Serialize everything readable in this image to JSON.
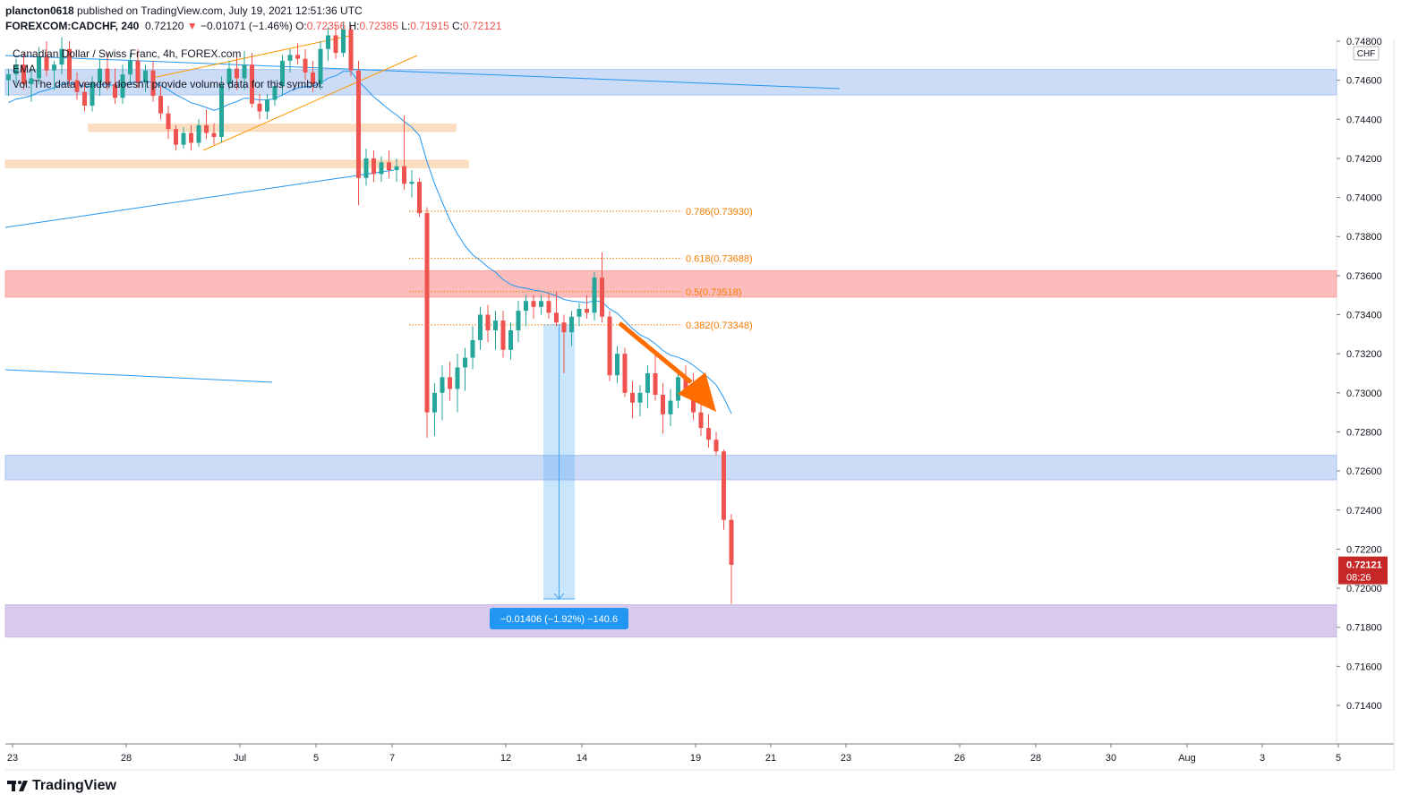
{
  "header": {
    "author": "plancton0618",
    "published_text": "published on TradingView.com, July 19, 2021 12:51:36 UTC",
    "symbol": "FOREXCOM:CADCHF, 240",
    "last": "0.72120",
    "arrow": "▼",
    "change": "−0.01071 (−1.46%)",
    "o_label": "O:",
    "o_value": "0.72356",
    "h_label": "H:",
    "h_value": "0.72385",
    "l_label": "L:",
    "l_value": "0.71915",
    "c_label": "C:",
    "c_value": "0.72121"
  },
  "legend": {
    "title": "Canadian Dollar / Swiss Franc, 4h, FOREX.com",
    "ema": "EMA",
    "vol": "Vol: The data vendor doesn't provide volume data for this symbol."
  },
  "price_axis": {
    "currency_badge": "CHF",
    "ticks": [
      "0.74800",
      "0.74600",
      "0.74400",
      "0.74200",
      "0.74000",
      "0.73800",
      "0.73600",
      "0.73400",
      "0.73200",
      "0.73000",
      "0.72800",
      "0.72600",
      "0.72400",
      "0.72200",
      "0.72000",
      "0.71800",
      "0.71600",
      "0.71400"
    ],
    "last_price_label": "0.72121",
    "countdown": "08:26"
  },
  "time_axis": {
    "ticks": [
      "23",
      "28",
      "Jul",
      "5",
      "7",
      "12",
      "14",
      "19",
      "21",
      "23",
      "26",
      "28",
      "30",
      "Aug",
      "3",
      "5"
    ]
  },
  "fib": [
    {
      "label": "0.786(0.73930)",
      "price": 0.7393
    },
    {
      "label": "0.618(0.73688)",
      "price": 0.73688
    },
    {
      "label": "0.5(0.73518)",
      "price": 0.73518
    },
    {
      "label": "0.382(0.73348)",
      "price": 0.73348
    }
  ],
  "measure": {
    "label": "−0.01406 (−1.92%) −140.6"
  },
  "colors": {
    "up": "#26a69a",
    "down": "#ef5350",
    "ema": "#2196f3",
    "fib": "#f57c00",
    "arrow": "#ff6d00",
    "blue_zone": "#aac4f2",
    "red_zone": "#fca5a5",
    "orange_zone": "#fbd3ad",
    "purple_zone": "#cbb8e6",
    "measure": "#42a5f5",
    "trend_orange": "#ff9800"
  },
  "chart_data": {
    "type": "candlestick",
    "timeframe": "4h",
    "x_ticks": [
      "23",
      "28",
      "Jul",
      "5",
      "7",
      "12",
      "14",
      "19",
      "21",
      "23",
      "26",
      "28",
      "30",
      "Aug",
      "3",
      "5"
    ],
    "ylim": [
      0.7132,
      0.7482
    ],
    "zones": [
      {
        "kind": "support-resistance",
        "color": "blue",
        "from": 0.74525,
        "to": 0.74655
      },
      {
        "kind": "supply",
        "color": "orange",
        "from": 0.74345,
        "to": 0.74375
      },
      {
        "kind": "supply",
        "color": "orange",
        "from": 0.74165,
        "to": 0.7419
      },
      {
        "kind": "resistance",
        "color": "red",
        "from": 0.7349,
        "to": 0.73625
      },
      {
        "kind": "support-resistance",
        "color": "blue",
        "from": 0.72555,
        "to": 0.7268
      },
      {
        "kind": "target",
        "color": "purple",
        "from": 0.7175,
        "to": 0.71915
      }
    ],
    "fibonacci": [
      {
        "level": 0.786,
        "price": 0.7393
      },
      {
        "level": 0.618,
        "price": 0.73688
      },
      {
        "level": 0.5,
        "price": 0.73518
      },
      {
        "level": 0.382,
        "price": 0.73348
      }
    ],
    "measurement": {
      "change": -0.01406,
      "percent": -1.92,
      "pips": -140.6
    },
    "last_price": 0.72121,
    "candles_ohlc": [
      [
        0.746,
        0.7466,
        0.7452,
        0.7463
      ],
      [
        0.7463,
        0.7471,
        0.7458,
        0.7468
      ],
      [
        0.7468,
        0.7474,
        0.7455,
        0.7458
      ],
      [
        0.7458,
        0.7466,
        0.7449,
        0.7461
      ],
      [
        0.7461,
        0.7477,
        0.7458,
        0.7472
      ],
      [
        0.7472,
        0.748,
        0.7462,
        0.7465
      ],
      [
        0.7465,
        0.747,
        0.7455,
        0.7468
      ],
      [
        0.7468,
        0.7482,
        0.7463,
        0.7476
      ],
      [
        0.7476,
        0.748,
        0.7457,
        0.746
      ],
      [
        0.746,
        0.7464,
        0.745,
        0.7454
      ],
      [
        0.7454,
        0.7459,
        0.7444,
        0.7447
      ],
      [
        0.7447,
        0.7462,
        0.7444,
        0.7459
      ],
      [
        0.7459,
        0.7471,
        0.7452,
        0.7466
      ],
      [
        0.7466,
        0.7474,
        0.7455,
        0.7458
      ],
      [
        0.7458,
        0.7466,
        0.7448,
        0.7451
      ],
      [
        0.7451,
        0.7468,
        0.7448,
        0.7463
      ],
      [
        0.7463,
        0.7474,
        0.7458,
        0.747
      ],
      [
        0.747,
        0.7476,
        0.7456,
        0.7459
      ],
      [
        0.7459,
        0.7468,
        0.7454,
        0.7465
      ],
      [
        0.7465,
        0.747,
        0.7449,
        0.7452
      ],
      [
        0.7452,
        0.7457,
        0.744,
        0.7443
      ],
      [
        0.7443,
        0.7447,
        0.743,
        0.7435
      ],
      [
        0.7435,
        0.7437,
        0.7424,
        0.7427
      ],
      [
        0.7427,
        0.7436,
        0.7425,
        0.7433
      ],
      [
        0.7433,
        0.7437,
        0.7424,
        0.7428
      ],
      [
        0.7428,
        0.744,
        0.7426,
        0.7437
      ],
      [
        0.7437,
        0.7445,
        0.743,
        0.7433
      ],
      [
        0.7433,
        0.7438,
        0.7427,
        0.7431
      ],
      [
        0.7431,
        0.7462,
        0.7428,
        0.7458
      ],
      [
        0.7458,
        0.747,
        0.7455,
        0.7466
      ],
      [
        0.7466,
        0.7472,
        0.7455,
        0.7461
      ],
      [
        0.7461,
        0.7475,
        0.7455,
        0.7468
      ],
      [
        0.7468,
        0.7474,
        0.7446,
        0.7448
      ],
      [
        0.7448,
        0.7453,
        0.744,
        0.7444
      ],
      [
        0.7444,
        0.7453,
        0.744,
        0.745
      ],
      [
        0.745,
        0.746,
        0.7447,
        0.7457
      ],
      [
        0.7457,
        0.7473,
        0.7452,
        0.747
      ],
      [
        0.747,
        0.7476,
        0.7464,
        0.7473
      ],
      [
        0.7473,
        0.7479,
        0.7468,
        0.7471
      ],
      [
        0.7471,
        0.7476,
        0.746,
        0.7464
      ],
      [
        0.7464,
        0.747,
        0.7454,
        0.7458
      ],
      [
        0.7458,
        0.748,
        0.7455,
        0.7476
      ],
      [
        0.7476,
        0.7487,
        0.747,
        0.7483
      ],
      [
        0.7483,
        0.7488,
        0.7471,
        0.7474
      ],
      [
        0.7474,
        0.749,
        0.7472,
        0.7486
      ],
      [
        0.7486,
        0.7488,
        0.7462,
        0.7465
      ],
      [
        0.7465,
        0.747,
        0.7396,
        0.741
      ],
      [
        0.741,
        0.7425,
        0.7406,
        0.742
      ],
      [
        0.742,
        0.7424,
        0.7408,
        0.7412
      ],
      [
        0.7412,
        0.7421,
        0.7408,
        0.7418
      ],
      [
        0.7418,
        0.7424,
        0.741,
        0.7414
      ],
      [
        0.7414,
        0.742,
        0.7408,
        0.7416
      ],
      [
        0.7416,
        0.7442,
        0.7404,
        0.7407
      ],
      [
        0.7407,
        0.7414,
        0.74,
        0.7408
      ],
      [
        0.7408,
        0.741,
        0.739,
        0.7392
      ],
      [
        0.7392,
        0.7395,
        0.7277,
        0.729
      ],
      [
        0.729,
        0.7305,
        0.7278,
        0.73
      ],
      [
        0.73,
        0.7314,
        0.7286,
        0.7308
      ],
      [
        0.7308,
        0.7316,
        0.7296,
        0.7302
      ],
      [
        0.7302,
        0.732,
        0.729,
        0.7313
      ],
      [
        0.7313,
        0.7323,
        0.7301,
        0.7318
      ],
      [
        0.7318,
        0.7334,
        0.7312,
        0.7327
      ],
      [
        0.7327,
        0.7344,
        0.7322,
        0.734
      ],
      [
        0.734,
        0.7345,
        0.7326,
        0.7332
      ],
      [
        0.7332,
        0.7342,
        0.7322,
        0.7337
      ],
      [
        0.7337,
        0.7342,
        0.7318,
        0.7322
      ],
      [
        0.7322,
        0.7336,
        0.7317,
        0.7332
      ],
      [
        0.7332,
        0.7347,
        0.7326,
        0.7342
      ],
      [
        0.7342,
        0.735,
        0.7334,
        0.7347
      ],
      [
        0.7347,
        0.735,
        0.7338,
        0.7344
      ],
      [
        0.7344,
        0.735,
        0.734,
        0.7347
      ],
      [
        0.7347,
        0.7351,
        0.7338,
        0.7341
      ],
      [
        0.7341,
        0.7352,
        0.7334,
        0.7336
      ],
      [
        0.7336,
        0.734,
        0.731,
        0.7331
      ],
      [
        0.7331,
        0.7342,
        0.7324,
        0.7339
      ],
      [
        0.7339,
        0.7346,
        0.7334,
        0.7343
      ],
      [
        0.7343,
        0.735,
        0.7338,
        0.7341
      ],
      [
        0.7341,
        0.7362,
        0.7337,
        0.7359
      ],
      [
        0.7359,
        0.7372,
        0.7336,
        0.7339
      ],
      [
        0.7339,
        0.7342,
        0.7306,
        0.7309
      ],
      [
        0.7309,
        0.7324,
        0.7305,
        0.732
      ],
      [
        0.732,
        0.7323,
        0.7298,
        0.73
      ],
      [
        0.73,
        0.7306,
        0.7287,
        0.7295
      ],
      [
        0.7295,
        0.7304,
        0.7288,
        0.73
      ],
      [
        0.73,
        0.7314,
        0.7292,
        0.731
      ],
      [
        0.731,
        0.7321,
        0.7296,
        0.7299
      ],
      [
        0.7299,
        0.7305,
        0.7279,
        0.7289
      ],
      [
        0.7289,
        0.7302,
        0.7283,
        0.7296
      ],
      [
        0.7296,
        0.7312,
        0.7292,
        0.7308
      ],
      [
        0.7308,
        0.7314,
        0.7298,
        0.7302
      ],
      [
        0.7302,
        0.731,
        0.7286,
        0.729
      ],
      [
        0.729,
        0.73,
        0.7278,
        0.7282
      ],
      [
        0.7282,
        0.7289,
        0.7272,
        0.7276
      ],
      [
        0.7276,
        0.728,
        0.7268,
        0.727
      ],
      [
        0.727,
        0.7271,
        0.723,
        0.7235
      ],
      [
        0.7235,
        0.7238,
        0.7192,
        0.7212
      ]
    ]
  }
}
